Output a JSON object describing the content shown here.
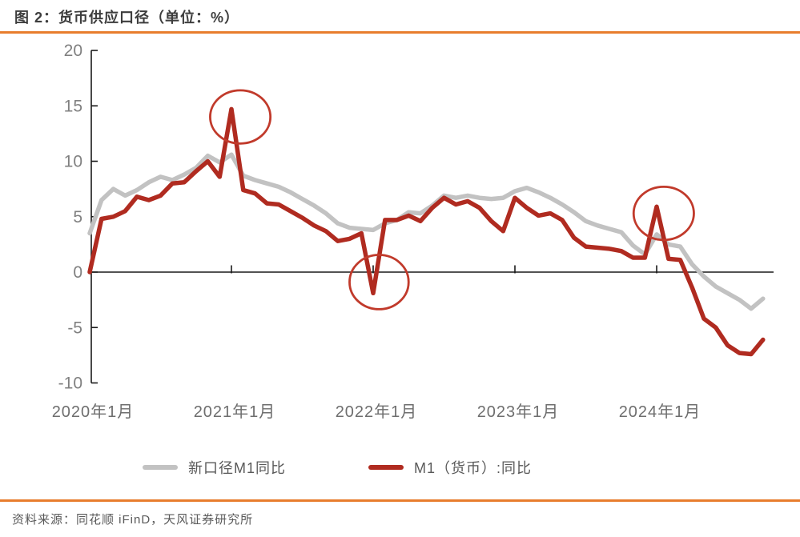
{
  "header": {
    "title": "图 2：货币供应口径（单位：%）"
  },
  "footer": {
    "source": "资料来源：同花顺 iFinD，天风证券研究所"
  },
  "colors": {
    "accent_orange": "#E87D2D",
    "series_new_m1": "#C2C2C2",
    "series_old_m1": "#B02B20",
    "annotation": "#C13A2B",
    "axis": "#1A1A1A",
    "y_tick_label": "#808080",
    "x_tick_label": "#6E6E6E"
  },
  "legend": {
    "items": [
      {
        "label": "新口径M1同比"
      },
      {
        "label": "M1（货币）:同比"
      }
    ]
  },
  "chart_data": {
    "type": "line",
    "title": "货币供应口径",
    "unit": "%",
    "xlabel": "",
    "ylabel": "",
    "ylim": [
      -10,
      20
    ],
    "grid": false,
    "legend_position": "bottom",
    "y_ticks": [
      20,
      15,
      10,
      5,
      0,
      -5,
      -10
    ],
    "x_start": "2020-01",
    "x_end": "2024-10",
    "x_frequency": "monthly",
    "x_tick_month_indices": [
      0,
      12,
      24,
      36,
      48
    ],
    "x_tick_labels": [
      "2020年1月",
      "2021年1月",
      "2022年1月",
      "2023年1月",
      "2024年1月"
    ],
    "series": [
      {
        "name": "新口径M1同比",
        "color": "#C2C2C2",
        "values": [
          3.5,
          6.5,
          7.5,
          6.9,
          7.4,
          8.1,
          8.6,
          8.3,
          8.8,
          9.4,
          10.5,
          9.9,
          10.6,
          8.7,
          8.3,
          8.0,
          7.7,
          7.2,
          6.6,
          6.0,
          5.3,
          4.4,
          4.0,
          3.9,
          3.8,
          4.4,
          4.7,
          5.4,
          5.3,
          6.0,
          6.9,
          6.7,
          6.9,
          6.7,
          6.6,
          6.7,
          7.3,
          7.6,
          7.2,
          6.7,
          6.1,
          5.4,
          4.6,
          4.2,
          3.9,
          3.6,
          2.4,
          1.6,
          3.4,
          2.5,
          2.3,
          0.7,
          -0.4,
          -1.3,
          -1.9,
          -2.5,
          -3.3,
          -2.4
        ]
      },
      {
        "name": "M1（货币）:同比",
        "color": "#B02B20",
        "values": [
          0.0,
          4.8,
          5.0,
          5.5,
          6.8,
          6.5,
          6.9,
          8.0,
          8.1,
          9.1,
          10.0,
          8.6,
          14.7,
          7.4,
          7.1,
          6.2,
          6.1,
          5.5,
          4.9,
          4.2,
          3.7,
          2.8,
          3.0,
          3.5,
          -1.9,
          4.7,
          4.7,
          5.1,
          4.6,
          5.8,
          6.7,
          6.1,
          6.4,
          5.8,
          4.6,
          3.7,
          6.7,
          5.8,
          5.1,
          5.3,
          4.7,
          3.1,
          2.3,
          2.2,
          2.1,
          1.9,
          1.3,
          1.3,
          5.9,
          1.2,
          1.1,
          -1.4,
          -4.2,
          -5.0,
          -6.6,
          -7.3,
          -7.4,
          -6.1
        ]
      }
    ],
    "annotations": [
      {
        "shape": "ellipse",
        "note": "2021年1月 M1同比冲高",
        "month_index": 12.75,
        "center_value": 14.0,
        "rx_months": 2.55,
        "ry_units": 2.4
      },
      {
        "shape": "ellipse",
        "note": "2022年1月 M1同比转负",
        "month_index": 24.5,
        "center_value": -0.9,
        "rx_months": 2.5,
        "ry_units": 2.45
      },
      {
        "shape": "ellipse",
        "note": "2024年1月 M1同比冲高",
        "month_index": 48.6,
        "center_value": 5.3,
        "rx_months": 2.55,
        "ry_units": 2.4
      }
    ]
  }
}
